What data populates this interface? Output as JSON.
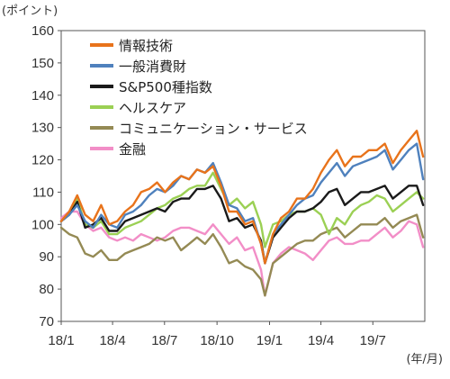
{
  "chart_data": {
    "type": "line",
    "y_unit_label": "(ポイント)",
    "x_unit_label": "(年/月)",
    "ylim": [
      70,
      160
    ],
    "y_ticks": [
      70,
      80,
      90,
      100,
      110,
      120,
      130,
      140,
      150,
      160
    ],
    "x_range": [
      "2018-01-01",
      "2019-09-30"
    ],
    "x_ticks": [
      {
        "date": "2018-01-01",
        "label": "18/1"
      },
      {
        "date": "2018-04-01",
        "label": "18/4"
      },
      {
        "date": "2018-07-01",
        "label": "18/7"
      },
      {
        "date": "2018-10-01",
        "label": "18/10"
      },
      {
        "date": "2019-01-01",
        "label": "19/1"
      },
      {
        "date": "2019-04-01",
        "label": "19/4"
      },
      {
        "date": "2019-07-01",
        "label": "19/7"
      }
    ],
    "grid": false,
    "legend_position": "top-left",
    "x": [
      "2018-01-01",
      "2018-01-15",
      "2018-01-29",
      "2018-02-12",
      "2018-02-26",
      "2018-03-12",
      "2018-03-26",
      "2018-04-09",
      "2018-04-23",
      "2018-05-07",
      "2018-05-21",
      "2018-06-04",
      "2018-06-18",
      "2018-07-02",
      "2018-07-16",
      "2018-07-30",
      "2018-08-13",
      "2018-08-27",
      "2018-09-10",
      "2018-09-24",
      "2018-10-08",
      "2018-10-22",
      "2018-11-05",
      "2018-11-19",
      "2018-12-03",
      "2018-12-17",
      "2018-12-24",
      "2019-01-07",
      "2019-01-21",
      "2019-02-04",
      "2019-02-18",
      "2019-03-04",
      "2019-03-18",
      "2019-04-01",
      "2019-04-15",
      "2019-04-29",
      "2019-05-13",
      "2019-05-27",
      "2019-06-10",
      "2019-06-24",
      "2019-07-08",
      "2019-07-22",
      "2019-08-05",
      "2019-08-19",
      "2019-09-02",
      "2019-09-16",
      "2019-09-27"
    ],
    "series": [
      {
        "name": "情報技術",
        "color": "#e8731b",
        "values": [
          101,
          104,
          109,
          103,
          101,
          106,
          100,
          101,
          104,
          106,
          110,
          111,
          113,
          110,
          113,
          115,
          114,
          117,
          116,
          118,
          112,
          104,
          104,
          100,
          101,
          94,
          88,
          97,
          102,
          104,
          108,
          108,
          111,
          116,
          120,
          123,
          118,
          121,
          121,
          123,
          123,
          125,
          119,
          123,
          126,
          129,
          121
        ]
      },
      {
        "name": "一般消費財",
        "color": "#4f81bd",
        "values": [
          101,
          103,
          106,
          101,
          99,
          103,
          100,
          99,
          103,
          104,
          106,
          109,
          111,
          110,
          112,
          115,
          114,
          117,
          116,
          119,
          113,
          106,
          105,
          101,
          102,
          94,
          88,
          97,
          100,
          103,
          106,
          108,
          109,
          113,
          116,
          119,
          115,
          118,
          119,
          120,
          121,
          123,
          117,
          120,
          123,
          125,
          114
        ]
      },
      {
        "name": "S&P500種指数",
        "color": "#1a1a1a",
        "values": [
          101,
          103,
          107,
          99,
          100,
          102,
          98,
          98,
          101,
          102,
          103,
          104,
          105,
          104,
          107,
          108,
          108,
          111,
          111,
          112,
          108,
          101,
          102,
          99,
          100,
          95,
          88,
          96,
          99,
          102,
          104,
          104,
          105,
          107,
          110,
          111,
          106,
          108,
          110,
          110,
          111,
          112,
          108,
          110,
          112,
          112,
          106
        ]
      },
      {
        "name": "ヘルスケア",
        "color": "#9bd054",
        "values": [
          101,
          103,
          108,
          100,
          99,
          101,
          97,
          97,
          99,
          100,
          101,
          103,
          105,
          106,
          108,
          109,
          111,
          112,
          112,
          116,
          111,
          106,
          108,
          105,
          107,
          100,
          93,
          100,
          101,
          103,
          104,
          104,
          105,
          103,
          97,
          102,
          100,
          104,
          106,
          107,
          109,
          108,
          104,
          106,
          108,
          110,
          108
        ]
      },
      {
        "name": "コミュニケーション・サービス",
        "color": "#948a54",
        "values": [
          99,
          97,
          96,
          91,
          90,
          92,
          89,
          89,
          91,
          92,
          93,
          94,
          96,
          95,
          96,
          92,
          94,
          96,
          94,
          97,
          93,
          88,
          89,
          87,
          86,
          83,
          78,
          88,
          90,
          92,
          94,
          95,
          95,
          97,
          98,
          99,
          96,
          98,
          100,
          100,
          100,
          102,
          99,
          101,
          102,
          103,
          96
        ]
      },
      {
        "name": "金融",
        "color": "#f28ec7",
        "values": [
          102,
          104,
          104,
          100,
          98,
          99,
          96,
          95,
          96,
          95,
          97,
          96,
          95,
          96,
          98,
          99,
          99,
          98,
          97,
          100,
          97,
          94,
          96,
          92,
          93,
          86,
          78,
          88,
          91,
          93,
          92,
          91,
          89,
          92,
          95,
          96,
          94,
          94,
          95,
          95,
          97,
          99,
          96,
          98,
          101,
          100,
          93
        ]
      }
    ]
  }
}
